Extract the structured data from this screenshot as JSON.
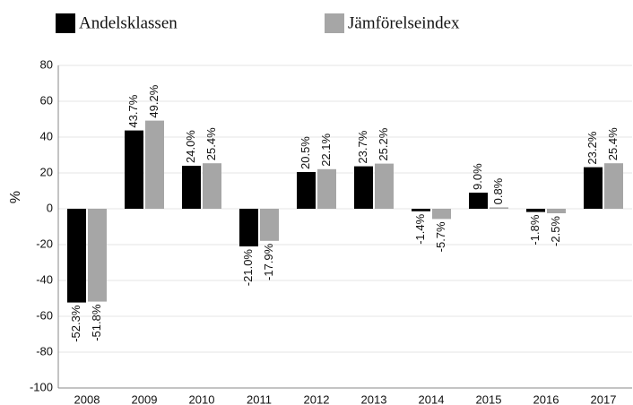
{
  "chart_data": {
    "type": "bar",
    "y_label": "%",
    "categories": [
      "2008",
      "2009",
      "2010",
      "2011",
      "2012",
      "2013",
      "2014",
      "2015",
      "2016",
      "2017"
    ],
    "series": [
      {
        "name": "Andelsklassen",
        "color": "#000000",
        "values": [
          -52.3,
          43.7,
          24.0,
          -21.0,
          20.5,
          23.7,
          -1.4,
          9.0,
          -1.8,
          23.2
        ],
        "value_labels": [
          "-52.3%",
          "43.7%",
          "24.0%",
          "-21.0%",
          "20.5%",
          "23.7%",
          "-1.4%",
          "9.0%",
          "-1.8%",
          "23.2%"
        ]
      },
      {
        "name": "Jämförelseindex",
        "color": "#a6a6a6",
        "values": [
          -51.8,
          49.2,
          25.4,
          -17.9,
          22.1,
          25.2,
          -5.7,
          0.8,
          -2.5,
          25.4
        ],
        "value_labels": [
          "-51.8%",
          "49.2%",
          "25.4%",
          "-17.9%",
          "22.1%",
          "25.2%",
          "-5.7%",
          "0.8%",
          "-2.5%",
          "25.4%"
        ]
      }
    ],
    "ylim": [
      -100,
      80
    ],
    "yticks": [
      80,
      60,
      40,
      20,
      0,
      -20,
      -40,
      -60,
      -80,
      -100
    ],
    "grid": true
  }
}
